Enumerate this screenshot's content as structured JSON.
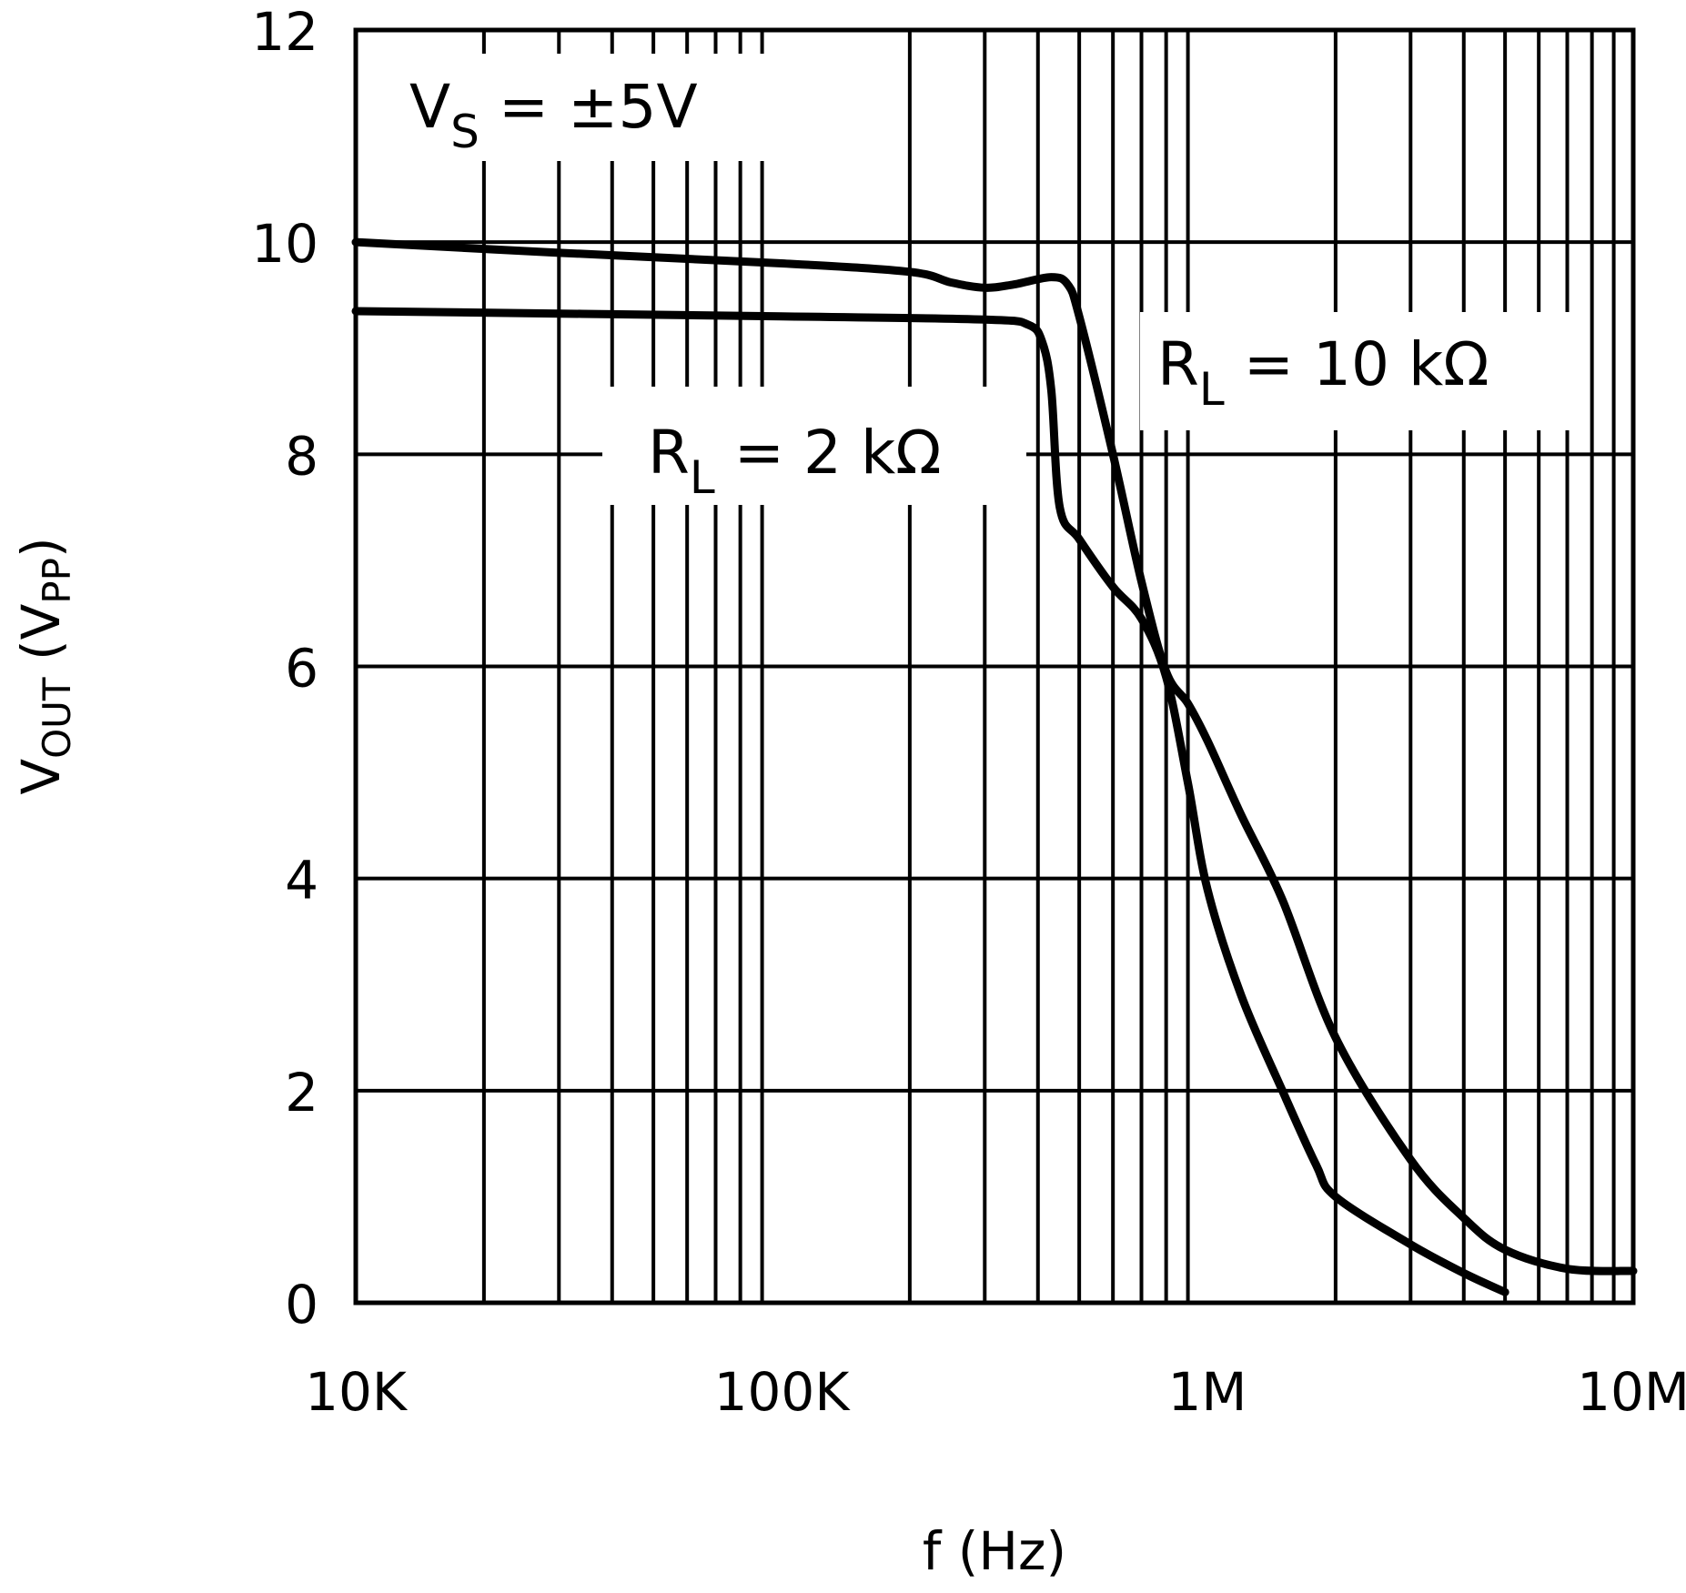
{
  "chart_data": {
    "type": "line",
    "xlabel": "f (Hz)",
    "ylabel": {
      "main": "V",
      "sub": "OUT",
      "unit_main": "V",
      "unit_sub": "PP"
    },
    "x_scale": "log",
    "xlim": [
      10000,
      10000000
    ],
    "ylim": [
      0,
      12
    ],
    "grid": true,
    "x_ticks": [
      {
        "value": 10000,
        "label": "10K"
      },
      {
        "value": 100000,
        "label": "100K"
      },
      {
        "value": 1000000,
        "label": "1M"
      },
      {
        "value": 10000000,
        "label": "10M"
      }
    ],
    "y_ticks": [
      {
        "value": 0,
        "label": "0"
      },
      {
        "value": 2,
        "label": "2"
      },
      {
        "value": 4,
        "label": "4"
      },
      {
        "value": 6,
        "label": "6"
      },
      {
        "value": 8,
        "label": "8"
      },
      {
        "value": 10,
        "label": "10"
      },
      {
        "value": 12,
        "label": "12"
      }
    ],
    "annotations": [
      {
        "id": "vs",
        "main": "V",
        "sub": "S",
        "rest": " =  ±5V"
      },
      {
        "id": "rl2k",
        "main": "R",
        "sub": "L",
        "rest": "  =  2 kΩ"
      },
      {
        "id": "rl10k",
        "main": "R",
        "sub": "L",
        "rest": "  =  10 kΩ"
      }
    ],
    "series": [
      {
        "name": "R_L = 10 kΩ",
        "color": "#000000",
        "points": [
          [
            10000,
            10
          ],
          [
            30000,
            9.9
          ],
          [
            100000,
            9.8
          ],
          [
            200000,
            9.72
          ],
          [
            250000,
            9.62
          ],
          [
            300000,
            9.57
          ],
          [
            350000,
            9.6
          ],
          [
            430000,
            9.67
          ],
          [
            470000,
            9.6
          ],
          [
            500000,
            9.3
          ],
          [
            600000,
            8.0
          ],
          [
            700000,
            6.8
          ],
          [
            800000,
            5.95
          ],
          [
            900000,
            5.65
          ],
          [
            1000000,
            5.3
          ],
          [
            1200000,
            4.6
          ],
          [
            1500000,
            3.8
          ],
          [
            2000000,
            2.5
          ],
          [
            3000000,
            1.35
          ],
          [
            4000000,
            0.8
          ],
          [
            5000000,
            0.5
          ],
          [
            7000000,
            0.32
          ],
          [
            10000000,
            0.3
          ]
        ]
      },
      {
        "name": "R_L = 2 kΩ",
        "color": "#000000",
        "points": [
          [
            10000,
            9.35
          ],
          [
            100000,
            9.3
          ],
          [
            300000,
            9.27
          ],
          [
            380000,
            9.22
          ],
          [
            410000,
            9.05
          ],
          [
            430000,
            8.6
          ],
          [
            450000,
            7.5
          ],
          [
            500000,
            7.2
          ],
          [
            600000,
            6.75
          ],
          [
            700000,
            6.45
          ],
          [
            800000,
            5.9
          ],
          [
            900000,
            4.9
          ],
          [
            1000000,
            3.9
          ],
          [
            1200000,
            2.9
          ],
          [
            1500000,
            2.0
          ],
          [
            1800000,
            1.3
          ],
          [
            2000000,
            1.0
          ],
          [
            3000000,
            0.55
          ],
          [
            4000000,
            0.28
          ],
          [
            5000000,
            0.1
          ]
        ]
      }
    ]
  }
}
